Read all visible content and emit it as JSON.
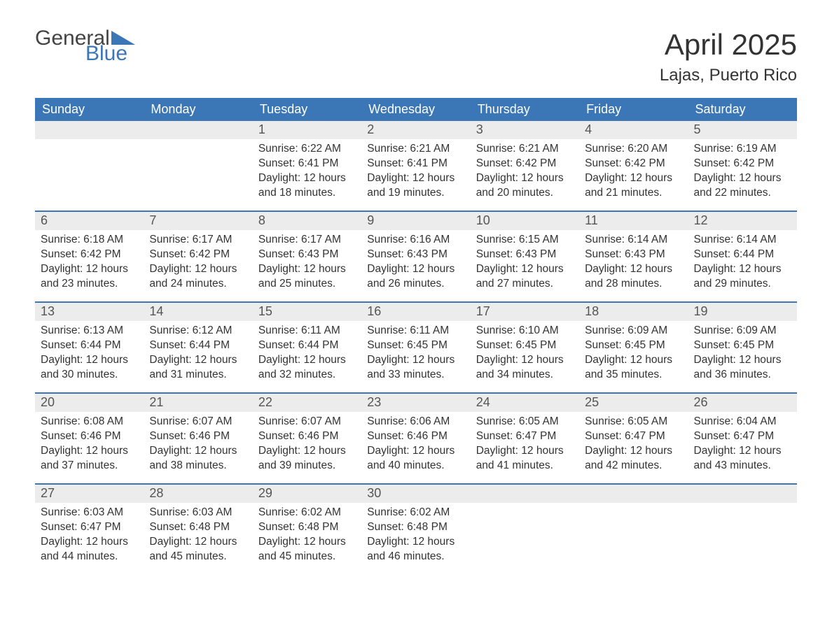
{
  "logo": {
    "text1": "General",
    "text2": "Blue"
  },
  "title": "April 2025",
  "location": "Lajas, Puerto Rico",
  "colors": {
    "header_bg": "#3b76b6",
    "header_text": "#ffffff",
    "daynum_bg": "#ececec",
    "body_text": "#333333",
    "page_bg": "#ffffff",
    "logo_blue": "#3b76b6",
    "logo_gray": "#444444"
  },
  "day_headers": [
    "Sunday",
    "Monday",
    "Tuesday",
    "Wednesday",
    "Thursday",
    "Friday",
    "Saturday"
  ],
  "weeks": [
    [
      {
        "day": "",
        "sunrise": "",
        "sunset": "",
        "daylight1": "",
        "daylight2": ""
      },
      {
        "day": "",
        "sunrise": "",
        "sunset": "",
        "daylight1": "",
        "daylight2": ""
      },
      {
        "day": "1",
        "sunrise": "Sunrise: 6:22 AM",
        "sunset": "Sunset: 6:41 PM",
        "daylight1": "Daylight: 12 hours",
        "daylight2": "and 18 minutes."
      },
      {
        "day": "2",
        "sunrise": "Sunrise: 6:21 AM",
        "sunset": "Sunset: 6:41 PM",
        "daylight1": "Daylight: 12 hours",
        "daylight2": "and 19 minutes."
      },
      {
        "day": "3",
        "sunrise": "Sunrise: 6:21 AM",
        "sunset": "Sunset: 6:42 PM",
        "daylight1": "Daylight: 12 hours",
        "daylight2": "and 20 minutes."
      },
      {
        "day": "4",
        "sunrise": "Sunrise: 6:20 AM",
        "sunset": "Sunset: 6:42 PM",
        "daylight1": "Daylight: 12 hours",
        "daylight2": "and 21 minutes."
      },
      {
        "day": "5",
        "sunrise": "Sunrise: 6:19 AM",
        "sunset": "Sunset: 6:42 PM",
        "daylight1": "Daylight: 12 hours",
        "daylight2": "and 22 minutes."
      }
    ],
    [
      {
        "day": "6",
        "sunrise": "Sunrise: 6:18 AM",
        "sunset": "Sunset: 6:42 PM",
        "daylight1": "Daylight: 12 hours",
        "daylight2": "and 23 minutes."
      },
      {
        "day": "7",
        "sunrise": "Sunrise: 6:17 AM",
        "sunset": "Sunset: 6:42 PM",
        "daylight1": "Daylight: 12 hours",
        "daylight2": "and 24 minutes."
      },
      {
        "day": "8",
        "sunrise": "Sunrise: 6:17 AM",
        "sunset": "Sunset: 6:43 PM",
        "daylight1": "Daylight: 12 hours",
        "daylight2": "and 25 minutes."
      },
      {
        "day": "9",
        "sunrise": "Sunrise: 6:16 AM",
        "sunset": "Sunset: 6:43 PM",
        "daylight1": "Daylight: 12 hours",
        "daylight2": "and 26 minutes."
      },
      {
        "day": "10",
        "sunrise": "Sunrise: 6:15 AM",
        "sunset": "Sunset: 6:43 PM",
        "daylight1": "Daylight: 12 hours",
        "daylight2": "and 27 minutes."
      },
      {
        "day": "11",
        "sunrise": "Sunrise: 6:14 AM",
        "sunset": "Sunset: 6:43 PM",
        "daylight1": "Daylight: 12 hours",
        "daylight2": "and 28 minutes."
      },
      {
        "day": "12",
        "sunrise": "Sunrise: 6:14 AM",
        "sunset": "Sunset: 6:44 PM",
        "daylight1": "Daylight: 12 hours",
        "daylight2": "and 29 minutes."
      }
    ],
    [
      {
        "day": "13",
        "sunrise": "Sunrise: 6:13 AM",
        "sunset": "Sunset: 6:44 PM",
        "daylight1": "Daylight: 12 hours",
        "daylight2": "and 30 minutes."
      },
      {
        "day": "14",
        "sunrise": "Sunrise: 6:12 AM",
        "sunset": "Sunset: 6:44 PM",
        "daylight1": "Daylight: 12 hours",
        "daylight2": "and 31 minutes."
      },
      {
        "day": "15",
        "sunrise": "Sunrise: 6:11 AM",
        "sunset": "Sunset: 6:44 PM",
        "daylight1": "Daylight: 12 hours",
        "daylight2": "and 32 minutes."
      },
      {
        "day": "16",
        "sunrise": "Sunrise: 6:11 AM",
        "sunset": "Sunset: 6:45 PM",
        "daylight1": "Daylight: 12 hours",
        "daylight2": "and 33 minutes."
      },
      {
        "day": "17",
        "sunrise": "Sunrise: 6:10 AM",
        "sunset": "Sunset: 6:45 PM",
        "daylight1": "Daylight: 12 hours",
        "daylight2": "and 34 minutes."
      },
      {
        "day": "18",
        "sunrise": "Sunrise: 6:09 AM",
        "sunset": "Sunset: 6:45 PM",
        "daylight1": "Daylight: 12 hours",
        "daylight2": "and 35 minutes."
      },
      {
        "day": "19",
        "sunrise": "Sunrise: 6:09 AM",
        "sunset": "Sunset: 6:45 PM",
        "daylight1": "Daylight: 12 hours",
        "daylight2": "and 36 minutes."
      }
    ],
    [
      {
        "day": "20",
        "sunrise": "Sunrise: 6:08 AM",
        "sunset": "Sunset: 6:46 PM",
        "daylight1": "Daylight: 12 hours",
        "daylight2": "and 37 minutes."
      },
      {
        "day": "21",
        "sunrise": "Sunrise: 6:07 AM",
        "sunset": "Sunset: 6:46 PM",
        "daylight1": "Daylight: 12 hours",
        "daylight2": "and 38 minutes."
      },
      {
        "day": "22",
        "sunrise": "Sunrise: 6:07 AM",
        "sunset": "Sunset: 6:46 PM",
        "daylight1": "Daylight: 12 hours",
        "daylight2": "and 39 minutes."
      },
      {
        "day": "23",
        "sunrise": "Sunrise: 6:06 AM",
        "sunset": "Sunset: 6:46 PM",
        "daylight1": "Daylight: 12 hours",
        "daylight2": "and 40 minutes."
      },
      {
        "day": "24",
        "sunrise": "Sunrise: 6:05 AM",
        "sunset": "Sunset: 6:47 PM",
        "daylight1": "Daylight: 12 hours",
        "daylight2": "and 41 minutes."
      },
      {
        "day": "25",
        "sunrise": "Sunrise: 6:05 AM",
        "sunset": "Sunset: 6:47 PM",
        "daylight1": "Daylight: 12 hours",
        "daylight2": "and 42 minutes."
      },
      {
        "day": "26",
        "sunrise": "Sunrise: 6:04 AM",
        "sunset": "Sunset: 6:47 PM",
        "daylight1": "Daylight: 12 hours",
        "daylight2": "and 43 minutes."
      }
    ],
    [
      {
        "day": "27",
        "sunrise": "Sunrise: 6:03 AM",
        "sunset": "Sunset: 6:47 PM",
        "daylight1": "Daylight: 12 hours",
        "daylight2": "and 44 minutes."
      },
      {
        "day": "28",
        "sunrise": "Sunrise: 6:03 AM",
        "sunset": "Sunset: 6:48 PM",
        "daylight1": "Daylight: 12 hours",
        "daylight2": "and 45 minutes."
      },
      {
        "day": "29",
        "sunrise": "Sunrise: 6:02 AM",
        "sunset": "Sunset: 6:48 PM",
        "daylight1": "Daylight: 12 hours",
        "daylight2": "and 45 minutes."
      },
      {
        "day": "30",
        "sunrise": "Sunrise: 6:02 AM",
        "sunset": "Sunset: 6:48 PM",
        "daylight1": "Daylight: 12 hours",
        "daylight2": "and 46 minutes."
      },
      {
        "day": "",
        "sunrise": "",
        "sunset": "",
        "daylight1": "",
        "daylight2": ""
      },
      {
        "day": "",
        "sunrise": "",
        "sunset": "",
        "daylight1": "",
        "daylight2": ""
      },
      {
        "day": "",
        "sunrise": "",
        "sunset": "",
        "daylight1": "",
        "daylight2": ""
      }
    ]
  ]
}
